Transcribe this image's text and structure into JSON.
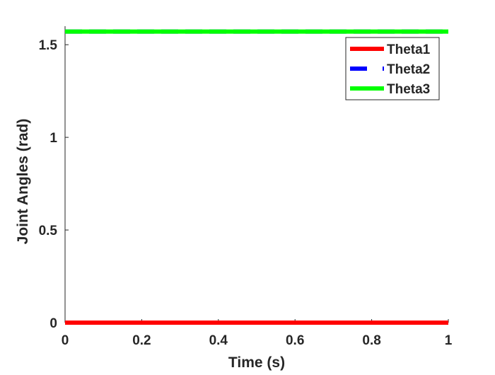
{
  "chart_data": {
    "type": "line",
    "title": "",
    "xlabel": "Time (s)",
    "ylabel": "Joint Angles (rad)",
    "xlim": [
      0,
      1
    ],
    "ylim": [
      0,
      1.6
    ],
    "xticks": [
      "0",
      "0.2",
      "0.4",
      "0.6",
      "0.8",
      "1"
    ],
    "yticks": [
      "0",
      "0.5",
      "1",
      "1.5"
    ],
    "grid": false,
    "legend_position": "top-right",
    "series": [
      {
        "name": "Theta1",
        "color": "#ff0000",
        "style": "solid",
        "x": [
          0,
          1
        ],
        "y": [
          0,
          0
        ]
      },
      {
        "name": "Theta2",
        "color": "#0000ff",
        "style": "dashed",
        "x": [
          0,
          1
        ],
        "y": [
          1.5708,
          1.5708
        ]
      },
      {
        "name": "Theta3",
        "color": "#00ff00",
        "style": "solid",
        "x": [
          0,
          1
        ],
        "y": [
          1.5708,
          1.5708
        ]
      }
    ]
  }
}
